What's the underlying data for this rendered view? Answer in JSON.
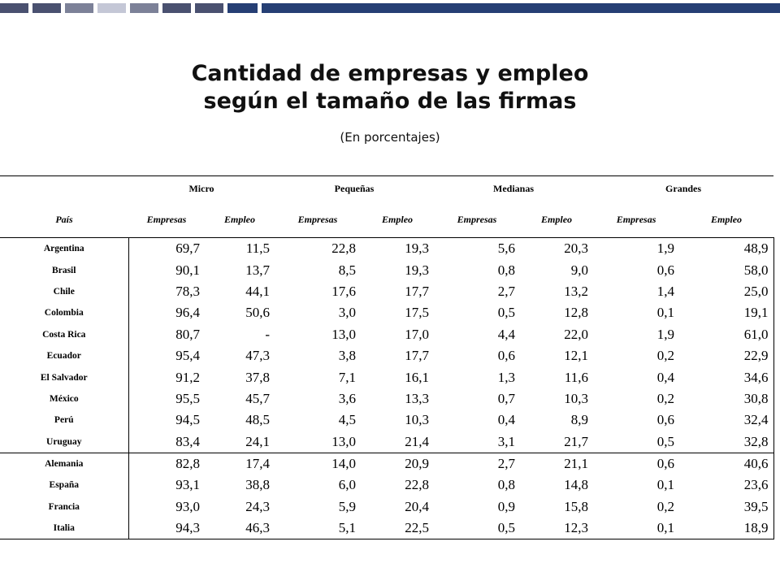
{
  "title_lines": [
    "Cantidad de empresas y empleo",
    "según el tamaño de las firmas"
  ],
  "subtitle": "(En porcentajes)",
  "top_bar_colors": [
    "#4a5170",
    "#4a5170",
    "#7c8198",
    "#c4c7d6",
    "#7c8198",
    "#4a5170",
    "#4a5170",
    "#263f74",
    "#263f74"
  ],
  "group_headers": [
    "Micro",
    "Pequeñas",
    "Medianas",
    "Grandes"
  ],
  "sub_headers": {
    "pais": "País",
    "empresas": "Empresas",
    "empleo": "Empleo"
  },
  "rows": [
    {
      "pais": "Argentina",
      "values": [
        "69,7",
        "11,5",
        "22,8",
        "19,3",
        "5,6",
        "20,3",
        "1,9",
        "48,9"
      ]
    },
    {
      "pais": "Brasil",
      "values": [
        "90,1",
        "13,7",
        "8,5",
        "19,3",
        "0,8",
        "9,0",
        "0,6",
        "58,0"
      ]
    },
    {
      "pais": "Chile",
      "values": [
        "78,3",
        "44,1",
        "17,6",
        "17,7",
        "2,7",
        "13,2",
        "1,4",
        "25,0"
      ]
    },
    {
      "pais": "Colombia",
      "values": [
        "96,4",
        "50,6",
        "3,0",
        "17,5",
        "0,5",
        "12,8",
        "0,1",
        "19,1"
      ]
    },
    {
      "pais": "Costa Rica",
      "values": [
        "80,7",
        "-",
        "13,0",
        "17,0",
        "4,4",
        "22,0",
        "1,9",
        "61,0"
      ]
    },
    {
      "pais": "Ecuador",
      "values": [
        "95,4",
        "47,3",
        "3,8",
        "17,7",
        "0,6",
        "12,1",
        "0,2",
        "22,9"
      ]
    },
    {
      "pais": "El Salvador",
      "values": [
        "91,2",
        "37,8",
        "7,1",
        "16,1",
        "1,3",
        "11,6",
        "0,4",
        "34,6"
      ]
    },
    {
      "pais": "México",
      "values": [
        "95,5",
        "45,7",
        "3,6",
        "13,3",
        "0,7",
        "10,3",
        "0,2",
        "30,8"
      ]
    },
    {
      "pais": "Perú",
      "values": [
        "94,5",
        "48,5",
        "4,5",
        "10,3",
        "0,4",
        "8,9",
        "0,6",
        "32,4"
      ]
    },
    {
      "pais": "Uruguay",
      "values": [
        "83,4",
        "24,1",
        "13,0",
        "21,4",
        "3,1",
        "21,7",
        "0,5",
        "32,8"
      ]
    },
    {
      "pais": "Alemania",
      "values": [
        "82,8",
        "17,4",
        "14,0",
        "20,9",
        "2,7",
        "21,1",
        "0,6",
        "40,6"
      ]
    },
    {
      "pais": "España",
      "values": [
        "93,1",
        "38,8",
        "6,0",
        "22,8",
        "0,8",
        "14,8",
        "0,1",
        "23,6"
      ]
    },
    {
      "pais": "Francia",
      "values": [
        "93,0",
        "24,3",
        "5,9",
        "20,4",
        "0,9",
        "15,8",
        "0,2",
        "39,5"
      ]
    },
    {
      "pais": "Italia",
      "values": [
        "94,3",
        "46,3",
        "5,1",
        "22,5",
        "0,5",
        "12,3",
        "0,1",
        "18,9"
      ]
    }
  ]
}
